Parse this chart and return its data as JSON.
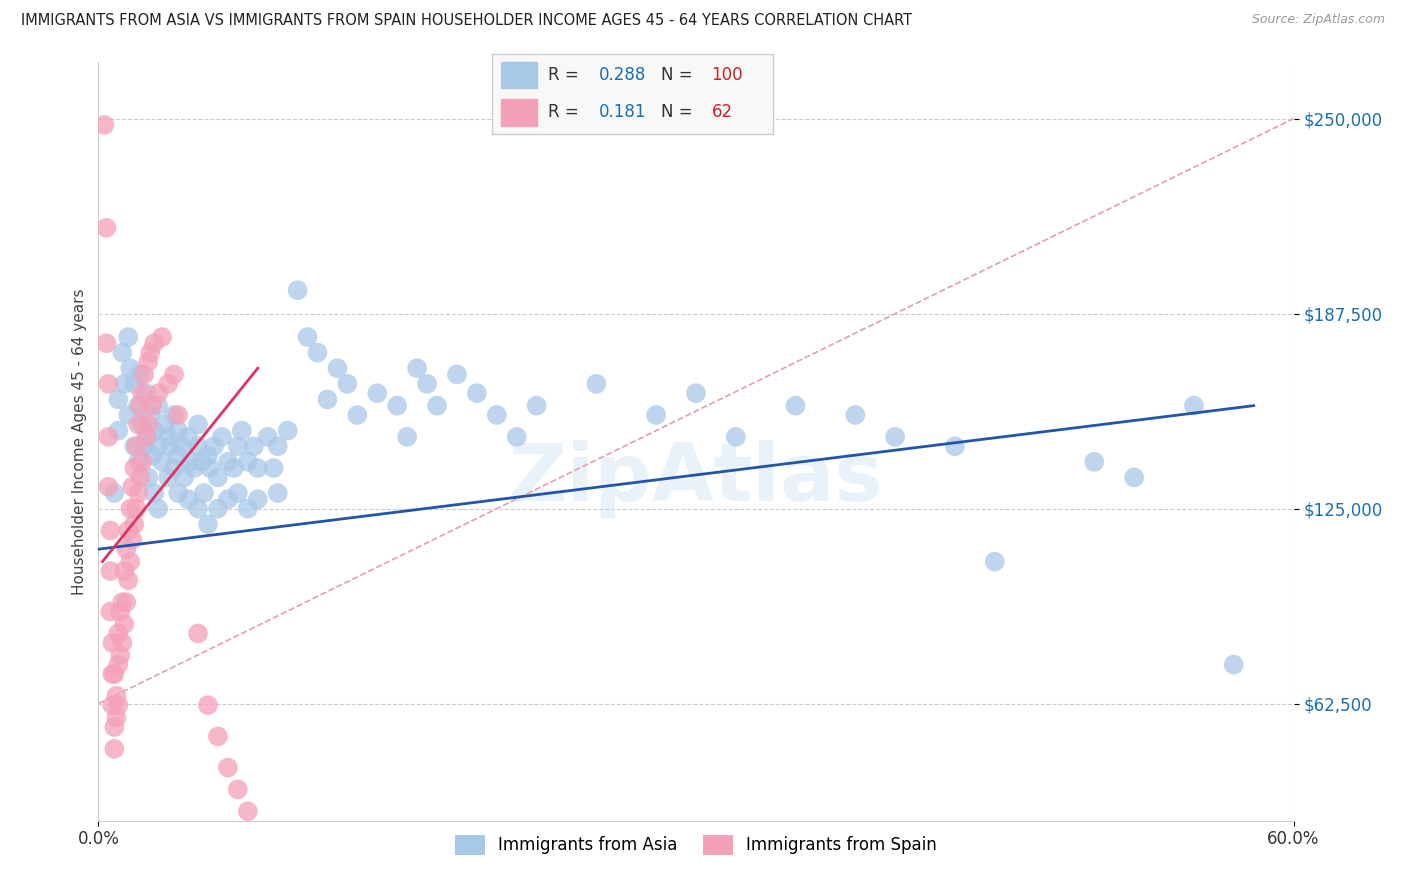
{
  "title": "IMMIGRANTS FROM ASIA VS IMMIGRANTS FROM SPAIN HOUSEHOLDER INCOME AGES 45 - 64 YEARS CORRELATION CHART",
  "source": "Source: ZipAtlas.com",
  "ylabel": "Householder Income Ages 45 - 64 years",
  "watermark": "ZipAtlas",
  "xlim": [
    0.0,
    0.6
  ],
  "ylim": [
    25000,
    268000
  ],
  "yticks": [
    62500,
    125000,
    187500,
    250000
  ],
  "ytick_labels": [
    "$62,500",
    "$125,000",
    "$187,500",
    "$250,000"
  ],
  "xticks": [
    0.0,
    0.6
  ],
  "xtick_labels": [
    "0.0%",
    "60.0%"
  ],
  "asia_R": 0.288,
  "asia_N": 100,
  "spain_R": 0.181,
  "spain_N": 62,
  "asia_color": "#a8c8e8",
  "spain_color": "#f4a0b8",
  "asia_line_color": "#2255aa",
  "spain_line_color": "#dd3366",
  "diagonal_color": "#e0a0b0",
  "background_color": "#ffffff",
  "asia_scatter": [
    [
      0.008,
      130000
    ],
    [
      0.01,
      160000
    ],
    [
      0.01,
      150000
    ],
    [
      0.012,
      175000
    ],
    [
      0.013,
      165000
    ],
    [
      0.015,
      180000
    ],
    [
      0.015,
      155000
    ],
    [
      0.016,
      170000
    ],
    [
      0.018,
      165000
    ],
    [
      0.018,
      145000
    ],
    [
      0.02,
      158000
    ],
    [
      0.02,
      140000
    ],
    [
      0.021,
      168000
    ],
    [
      0.022,
      152000
    ],
    [
      0.023,
      145000
    ],
    [
      0.024,
      162000
    ],
    [
      0.025,
      148000
    ],
    [
      0.025,
      135000
    ],
    [
      0.026,
      155000
    ],
    [
      0.027,
      142000
    ],
    [
      0.028,
      150000
    ],
    [
      0.028,
      130000
    ],
    [
      0.03,
      145000
    ],
    [
      0.03,
      158000
    ],
    [
      0.03,
      125000
    ],
    [
      0.032,
      140000
    ],
    [
      0.033,
      152000
    ],
    [
      0.035,
      148000
    ],
    [
      0.035,
      135000
    ],
    [
      0.036,
      145000
    ],
    [
      0.038,
      138000
    ],
    [
      0.038,
      155000
    ],
    [
      0.04,
      142000
    ],
    [
      0.04,
      130000
    ],
    [
      0.04,
      150000
    ],
    [
      0.042,
      145000
    ],
    [
      0.043,
      135000
    ],
    [
      0.045,
      148000
    ],
    [
      0.045,
      128000
    ],
    [
      0.046,
      140000
    ],
    [
      0.048,
      138000
    ],
    [
      0.05,
      145000
    ],
    [
      0.05,
      125000
    ],
    [
      0.05,
      152000
    ],
    [
      0.052,
      140000
    ],
    [
      0.053,
      130000
    ],
    [
      0.055,
      142000
    ],
    [
      0.055,
      120000
    ],
    [
      0.056,
      138000
    ],
    [
      0.058,
      145000
    ],
    [
      0.06,
      135000
    ],
    [
      0.06,
      125000
    ],
    [
      0.062,
      148000
    ],
    [
      0.065,
      140000
    ],
    [
      0.065,
      128000
    ],
    [
      0.068,
      138000
    ],
    [
      0.07,
      145000
    ],
    [
      0.07,
      130000
    ],
    [
      0.072,
      150000
    ],
    [
      0.075,
      140000
    ],
    [
      0.075,
      125000
    ],
    [
      0.078,
      145000
    ],
    [
      0.08,
      138000
    ],
    [
      0.08,
      128000
    ],
    [
      0.085,
      148000
    ],
    [
      0.088,
      138000
    ],
    [
      0.09,
      145000
    ],
    [
      0.09,
      130000
    ],
    [
      0.095,
      150000
    ],
    [
      0.1,
      195000
    ],
    [
      0.105,
      180000
    ],
    [
      0.11,
      175000
    ],
    [
      0.115,
      160000
    ],
    [
      0.12,
      170000
    ],
    [
      0.125,
      165000
    ],
    [
      0.13,
      155000
    ],
    [
      0.14,
      162000
    ],
    [
      0.15,
      158000
    ],
    [
      0.155,
      148000
    ],
    [
      0.16,
      170000
    ],
    [
      0.165,
      165000
    ],
    [
      0.17,
      158000
    ],
    [
      0.18,
      168000
    ],
    [
      0.19,
      162000
    ],
    [
      0.2,
      155000
    ],
    [
      0.21,
      148000
    ],
    [
      0.22,
      158000
    ],
    [
      0.25,
      165000
    ],
    [
      0.28,
      155000
    ],
    [
      0.3,
      162000
    ],
    [
      0.32,
      148000
    ],
    [
      0.35,
      158000
    ],
    [
      0.38,
      155000
    ],
    [
      0.4,
      148000
    ],
    [
      0.43,
      145000
    ],
    [
      0.45,
      108000
    ],
    [
      0.5,
      140000
    ],
    [
      0.52,
      135000
    ],
    [
      0.55,
      158000
    ],
    [
      0.57,
      75000
    ]
  ],
  "spain_scatter": [
    [
      0.003,
      248000
    ],
    [
      0.004,
      215000
    ],
    [
      0.004,
      178000
    ],
    [
      0.005,
      165000
    ],
    [
      0.005,
      148000
    ],
    [
      0.005,
      132000
    ],
    [
      0.006,
      118000
    ],
    [
      0.006,
      105000
    ],
    [
      0.006,
      92000
    ],
    [
      0.007,
      82000
    ],
    [
      0.007,
      72000
    ],
    [
      0.007,
      62000
    ],
    [
      0.008,
      55000
    ],
    [
      0.008,
      48000
    ],
    [
      0.008,
      72000
    ],
    [
      0.009,
      65000
    ],
    [
      0.009,
      58000
    ],
    [
      0.01,
      85000
    ],
    [
      0.01,
      75000
    ],
    [
      0.01,
      62000
    ],
    [
      0.011,
      92000
    ],
    [
      0.011,
      78000
    ],
    [
      0.012,
      95000
    ],
    [
      0.012,
      82000
    ],
    [
      0.013,
      105000
    ],
    [
      0.013,
      88000
    ],
    [
      0.014,
      112000
    ],
    [
      0.014,
      95000
    ],
    [
      0.015,
      118000
    ],
    [
      0.015,
      102000
    ],
    [
      0.016,
      125000
    ],
    [
      0.016,
      108000
    ],
    [
      0.017,
      132000
    ],
    [
      0.017,
      115000
    ],
    [
      0.018,
      138000
    ],
    [
      0.018,
      120000
    ],
    [
      0.019,
      145000
    ],
    [
      0.019,
      125000
    ],
    [
      0.02,
      152000
    ],
    [
      0.02,
      130000
    ],
    [
      0.021,
      158000
    ],
    [
      0.021,
      135000
    ],
    [
      0.022,
      162000
    ],
    [
      0.022,
      140000
    ],
    [
      0.023,
      168000
    ],
    [
      0.024,
      148000
    ],
    [
      0.025,
      172000
    ],
    [
      0.025,
      152000
    ],
    [
      0.026,
      175000
    ],
    [
      0.027,
      158000
    ],
    [
      0.028,
      178000
    ],
    [
      0.03,
      162000
    ],
    [
      0.032,
      180000
    ],
    [
      0.035,
      165000
    ],
    [
      0.038,
      168000
    ],
    [
      0.04,
      155000
    ],
    [
      0.05,
      85000
    ],
    [
      0.055,
      62000
    ],
    [
      0.06,
      52000
    ],
    [
      0.065,
      42000
    ],
    [
      0.07,
      35000
    ],
    [
      0.075,
      28000
    ]
  ]
}
